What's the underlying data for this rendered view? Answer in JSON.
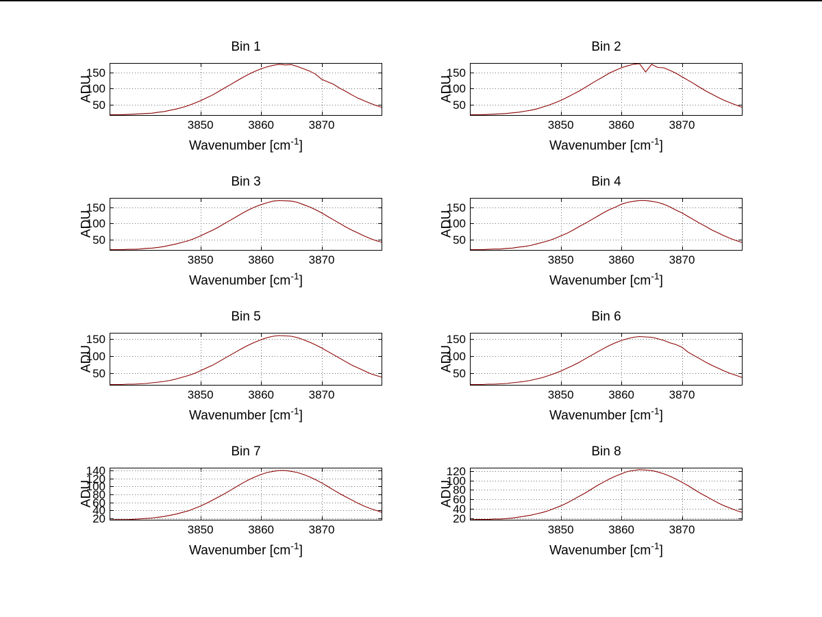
{
  "figure": {
    "background": "#ffffff",
    "top_border_color": "#000000"
  },
  "chart_data": {
    "type": "line",
    "shared": {
      "xlabel": "Wavenumber [cm⁻¹]",
      "xlabel_pre": "Wavenumber [cm",
      "xlabel_sup": "-1",
      "xlabel_post": "]",
      "ylabel": "ADU",
      "xlim": [
        3835,
        3880
      ],
      "xticks": [
        3850,
        3860,
        3870
      ],
      "grid": true,
      "legend": "none",
      "line_color": "#8b0000",
      "x": [
        3835,
        3836,
        3837,
        3838,
        3839,
        3840,
        3841,
        3842,
        3843,
        3844,
        3845,
        3846,
        3847,
        3848,
        3849,
        3850,
        3851,
        3852,
        3853,
        3854,
        3855,
        3856,
        3857,
        3858,
        3859,
        3860,
        3861,
        3862,
        3863,
        3864,
        3865,
        3866,
        3867,
        3868,
        3869,
        3870,
        3871,
        3872,
        3873,
        3874,
        3875,
        3876,
        3877,
        3878,
        3879,
        3880
      ]
    },
    "plots": [
      {
        "title": "Bin 1",
        "ylim": [
          15,
          180
        ],
        "yticks": [
          50,
          100,
          150
        ],
        "values": [
          18,
          18,
          18,
          19,
          20,
          21,
          22,
          23,
          26,
          28,
          32,
          36,
          41,
          47,
          54,
          62,
          71,
          80,
          91,
          102,
          113,
          124,
          135,
          145,
          154,
          162,
          168,
          173,
          176,
          174,
          175,
          169,
          162,
          155,
          145,
          129,
          121,
          113,
          101,
          91,
          80,
          70,
          62,
          54,
          47,
          41
        ]
      },
      {
        "title": "Bin 2",
        "ylim": [
          15,
          180
        ],
        "yticks": [
          50,
          100,
          150
        ],
        "values": [
          18,
          18,
          18,
          19,
          20,
          21,
          22,
          24,
          26,
          29,
          32,
          36,
          42,
          48,
          55,
          63,
          72,
          82,
          92,
          103,
          115,
          126,
          137,
          148,
          157,
          165,
          171,
          176,
          178,
          152,
          176,
          166,
          165,
          157,
          148,
          137,
          126,
          115,
          103,
          92,
          82,
          72,
          63,
          55,
          48,
          41
        ]
      },
      {
        "title": "Bin 3",
        "ylim": [
          15,
          180
        ],
        "yticks": [
          50,
          100,
          150
        ],
        "values": [
          18,
          18,
          18,
          19,
          19,
          20,
          22,
          23,
          25,
          28,
          32,
          36,
          41,
          46,
          53,
          61,
          70,
          79,
          89,
          100,
          111,
          122,
          133,
          143,
          152,
          159,
          165,
          170,
          172,
          171,
          170,
          166,
          159,
          152,
          143,
          133,
          122,
          111,
          100,
          89,
          79,
          70,
          61,
          53,
          46,
          41
        ]
      },
      {
        "title": "Bin 4",
        "ylim": [
          15,
          180
        ],
        "yticks": [
          50,
          100,
          150
        ],
        "values": [
          18,
          18,
          18,
          19,
          20,
          20,
          22,
          23,
          26,
          28,
          31,
          36,
          41,
          46,
          53,
          61,
          69,
          79,
          90,
          100,
          111,
          122,
          133,
          143,
          151,
          160,
          166,
          169,
          172,
          172,
          169,
          166,
          160,
          152,
          142,
          133,
          122,
          111,
          100,
          90,
          79,
          70,
          61,
          53,
          46,
          40
        ]
      },
      {
        "title": "Bin 5",
        "ylim": [
          15,
          168
        ],
        "yticks": [
          50,
          100,
          150
        ],
        "values": [
          18,
          18,
          18,
          19,
          19,
          20,
          21,
          23,
          25,
          27,
          30,
          34,
          39,
          44,
          50,
          58,
          66,
          74,
          84,
          94,
          104,
          114,
          124,
          133,
          141,
          148,
          154,
          158,
          160,
          159,
          158,
          154,
          148,
          141,
          133,
          124,
          114,
          104,
          94,
          84,
          74,
          66,
          58,
          50,
          44,
          39
        ]
      },
      {
        "title": "Bin 6",
        "ylim": [
          15,
          168
        ],
        "yticks": [
          50,
          100,
          150
        ],
        "values": [
          18,
          18,
          18,
          19,
          19,
          20,
          21,
          23,
          25,
          27,
          30,
          34,
          38,
          44,
          50,
          57,
          65,
          73,
          82,
          92,
          102,
          112,
          122,
          131,
          139,
          146,
          151,
          155,
          157,
          156,
          155,
          151,
          146,
          139,
          134,
          126,
          112,
          102,
          92,
          82,
          73,
          65,
          57,
          50,
          44,
          38
        ]
      },
      {
        "title": "Bin 7",
        "ylim": [
          15,
          147
        ],
        "yticks": [
          20,
          40,
          60,
          80,
          100,
          120,
          140
        ],
        "values": [
          16,
          17,
          17,
          17,
          18,
          19,
          20,
          21,
          23,
          25,
          28,
          31,
          35,
          39,
          45,
          51,
          58,
          66,
          74,
          82,
          91,
          100,
          109,
          117,
          124,
          130,
          135,
          138,
          140,
          140,
          138,
          135,
          130,
          124,
          117,
          109,
          100,
          91,
          82,
          74,
          66,
          58,
          51,
          45,
          40,
          35
        ]
      },
      {
        "title": "Bin 8",
        "ylim": [
          15,
          127
        ],
        "yticks": [
          20,
          40,
          60,
          80,
          100,
          120
        ],
        "values": [
          16,
          17,
          17,
          17,
          18,
          18,
          19,
          20,
          22,
          24,
          26,
          29,
          32,
          36,
          41,
          46,
          52,
          59,
          66,
          73,
          81,
          89,
          96,
          103,
          109,
          114,
          119,
          121,
          123,
          122,
          121,
          118,
          114,
          109,
          103,
          96,
          89,
          81,
          73,
          66,
          59,
          52,
          46,
          41,
          36,
          32
        ]
      }
    ]
  }
}
